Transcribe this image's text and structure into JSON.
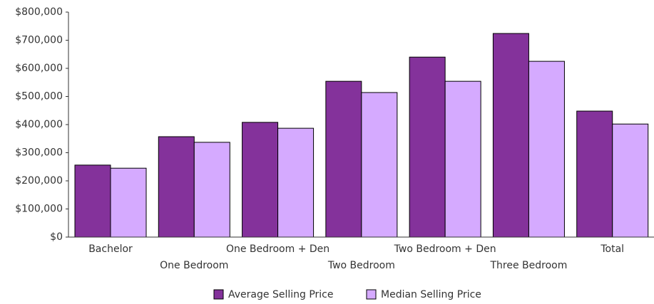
{
  "chart_data": {
    "type": "bar",
    "categories": [
      "Bachelor",
      "One Bedroom",
      "One Bedroom + Den",
      "Two Bedroom",
      "Two Bedroom + Den",
      "Three Bedroom",
      "Total"
    ],
    "series": [
      {
        "name": "Average Selling Price",
        "color": "#84329b",
        "values": [
          256000,
          357000,
          408000,
          554000,
          640000,
          724000,
          448000
        ]
      },
      {
        "name": "Median Selling Price",
        "color": "#d5aaff",
        "values": [
          245000,
          337000,
          387000,
          514000,
          554000,
          625000,
          402000
        ]
      }
    ],
    "ylim": [
      0,
      800000
    ],
    "yticks": [
      {
        "value": 0,
        "label": "$0"
      },
      {
        "value": 100000,
        "label": "$100,000"
      },
      {
        "value": 200000,
        "label": "$200,000"
      },
      {
        "value": 300000,
        "label": "$300,000"
      },
      {
        "value": 400000,
        "label": "$400,000"
      },
      {
        "value": 500000,
        "label": "$500,000"
      },
      {
        "value": 600000,
        "label": "$600,000"
      },
      {
        "value": 700000,
        "label": "$700,000"
      },
      {
        "value": 800000,
        "label": "$800,000"
      }
    ],
    "legend": "bottom"
  }
}
